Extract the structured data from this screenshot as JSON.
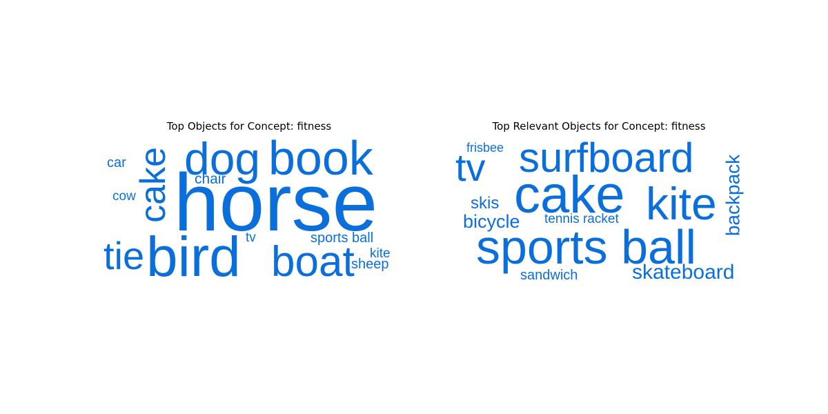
{
  "chart_data": [
    {
      "type": "wordcloud",
      "title": "Top Objects for Concept: fitness",
      "color": "#0a6fdb",
      "words": [
        "horse",
        "bird",
        "dog",
        "book",
        "boat",
        "cake",
        "tie",
        "chair",
        "car",
        "cow",
        "tv",
        "sports ball",
        "kite",
        "sheep"
      ]
    },
    {
      "type": "wordcloud",
      "title": "Top Relevant Objects for Concept: fitness",
      "color": "#0a6fdb",
      "words": [
        "sports ball",
        "cake",
        "surfboard",
        "kite",
        "tv",
        "skateboard",
        "bicycle",
        "backpack",
        "skis",
        "frisbee",
        "tennis racket",
        "sandwich"
      ]
    }
  ]
}
